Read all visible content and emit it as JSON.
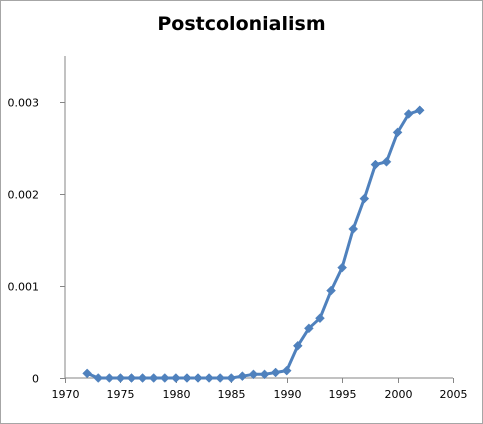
{
  "chart_data": {
    "type": "line",
    "title": "Postcolonialism",
    "xlabel": "",
    "ylabel": "",
    "xlim": [
      1970,
      2005
    ],
    "ylim": [
      0,
      0.0035
    ],
    "x_ticks": [
      1970,
      1975,
      1980,
      1985,
      1990,
      1995,
      2000,
      2005
    ],
    "y_ticks": [
      0,
      0.001,
      0.002,
      0.003
    ],
    "x_tick_labels": [
      "1970",
      "1975",
      "1980",
      "1985",
      "1990",
      "1995",
      "2000",
      "2005"
    ],
    "y_tick_labels": [
      "0",
      "0.001",
      "0.002",
      "0.003"
    ],
    "grid": false,
    "legend": "none",
    "series": [
      {
        "color": "#4f81bd",
        "marker": "diamond",
        "x": [
          1972,
          1973,
          1974,
          1975,
          1976,
          1977,
          1978,
          1979,
          1980,
          1981,
          1982,
          1983,
          1984,
          1985,
          1986,
          1987,
          1988,
          1989,
          1990,
          1991,
          1992,
          1993,
          1994,
          1995,
          1996,
          1997,
          1998,
          1999,
          2000,
          2001,
          2002
        ],
        "y": [
          5e-05,
          0.0,
          0.0,
          0.0,
          0.0,
          0.0,
          0.0,
          0.0,
          0.0,
          0.0,
          0.0,
          0.0,
          0.0,
          0.0,
          2e-05,
          4e-05,
          4e-05,
          6e-05,
          8e-05,
          0.00035,
          0.00054,
          0.00065,
          0.00095,
          0.0012,
          0.00162,
          0.00195,
          0.00232,
          0.00235,
          0.00267,
          0.00287,
          0.00291
        ]
      }
    ]
  }
}
